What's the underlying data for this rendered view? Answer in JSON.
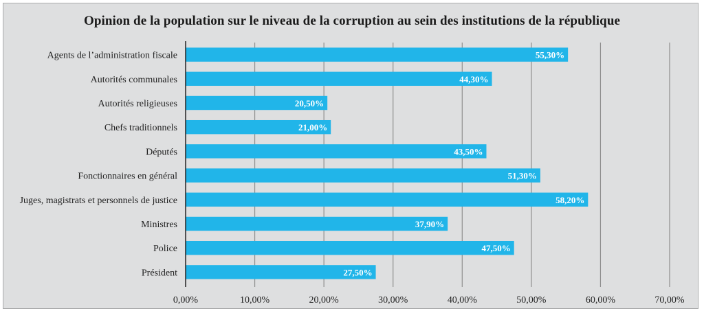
{
  "chart_data": {
    "type": "bar",
    "orientation": "horizontal",
    "title": "Opinion de la population sur le niveau de la corruption au sein des institutions de la république",
    "categories": [
      "Agents de l’administration fiscale",
      "Autorités communales",
      "Autorités religieuses",
      "Chefs traditionnels",
      "Députés",
      "Fonctionnaires en général",
      "Juges, magistrats et personnels de justice",
      "Ministres",
      "Police",
      "Président"
    ],
    "values": [
      55.3,
      44.3,
      20.5,
      21.0,
      43.5,
      51.3,
      58.2,
      37.9,
      47.5,
      27.5
    ],
    "value_labels": [
      "55,30%",
      "44,30%",
      "20,50%",
      "21,00%",
      "43,50%",
      "51,30%",
      "58,20%",
      "37,90%",
      "47,50%",
      "27,50%"
    ],
    "xlim": [
      0,
      70
    ],
    "xticks": [
      0,
      10,
      20,
      30,
      40,
      50,
      60,
      70
    ],
    "xtick_labels": [
      "0,00%",
      "10,00%",
      "20,00%",
      "30,00%",
      "40,00%",
      "50,00%",
      "60,00%",
      "70,00%"
    ],
    "xlabel": "",
    "ylabel": "",
    "grid": "vertical",
    "legend": "none",
    "colors": {
      "bar": "#21b5e9",
      "background": "#dedfe0",
      "gridline": "#8e8e8e"
    }
  }
}
